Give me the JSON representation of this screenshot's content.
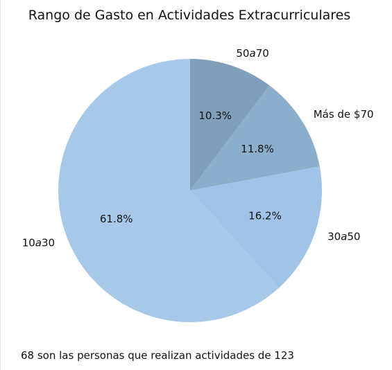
{
  "chart_data": {
    "type": "pie",
    "title": "Rango de Gasto en Actividades Extracurriculares",
    "start_angle_deg": 90,
    "direction": "clockwise",
    "slices": [
      {
        "label": "50a70",
        "label_parts": [
          "50",
          "a",
          "70"
        ],
        "value": 10.3,
        "pct_text": "10.3%",
        "color": "#7f9fba"
      },
      {
        "label": "Más de $70",
        "label_parts": [
          "Más de $70"
        ],
        "value": 11.8,
        "pct_text": "11.8%",
        "color": "#8caecd"
      },
      {
        "label": "30a50",
        "label_parts": [
          "30",
          "a",
          "50"
        ],
        "value": 16.2,
        "pct_text": "16.2%",
        "color": "#a0c3e7"
      },
      {
        "label": "10a30",
        "label_parts": [
          "10",
          "a",
          "30"
        ],
        "value": 61.8,
        "pct_text": "61.8%",
        "color": "#a7c8e9"
      }
    ]
  },
  "footnote": "68 son las personas que realizan actividades de 123"
}
